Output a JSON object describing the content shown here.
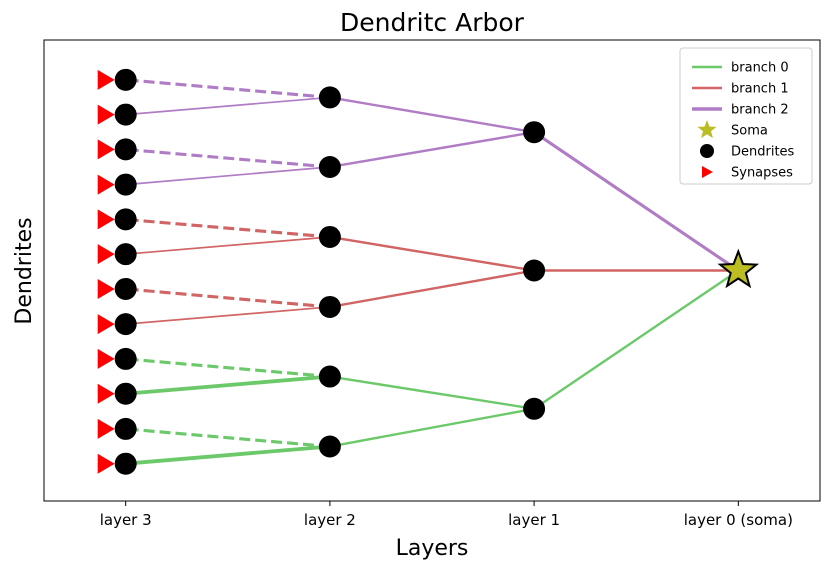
{
  "chart_data": {
    "type": "diagram",
    "title": "Dendritc Arbor",
    "xlabel": "Layers",
    "ylabel": "Dendrites",
    "x_ticks": [
      "layer 3",
      "layer 2",
      "layer 1",
      "layer 0 (soma)"
    ],
    "layer_positions": [
      0,
      1,
      2,
      3
    ],
    "xlim": [
      -0.4,
      3.4
    ],
    "ylim": [
      -0.05,
      1.05
    ],
    "soma": {
      "layer": 3,
      "y": 0.5
    },
    "legend": {
      "placement": "top-right",
      "entries": [
        {
          "label": "branch 0",
          "kind": "line",
          "color": "#6cc96a"
        },
        {
          "label": "branch 1",
          "kind": "line",
          "color": "#d16464"
        },
        {
          "label": "branch 2",
          "kind": "line",
          "color": "#b07cc6"
        },
        {
          "label": "Soma",
          "kind": "star",
          "color": "#bcbd22"
        },
        {
          "label": "Dendrites",
          "kind": "dot",
          "color": "#000000"
        },
        {
          "label": "Synapses",
          "kind": "triangle",
          "color": "#ff0000"
        }
      ]
    },
    "nodes": [
      {
        "id": "L1-a",
        "layer": 2,
        "y": 0.83
      },
      {
        "id": "L1-b",
        "layer": 2,
        "y": 0.5
      },
      {
        "id": "L1-c",
        "layer": 2,
        "y": 0.17
      },
      {
        "id": "L2-a",
        "layer": 1,
        "y": 0.913
      },
      {
        "id": "L2-b",
        "layer": 1,
        "y": 0.747
      },
      {
        "id": "L2-c",
        "layer": 1,
        "y": 0.58
      },
      {
        "id": "L2-d",
        "layer": 1,
        "y": 0.413
      },
      {
        "id": "L2-e",
        "layer": 1,
        "y": 0.247
      },
      {
        "id": "L2-f",
        "layer": 1,
        "y": 0.08
      },
      {
        "id": "L3-1",
        "layer": 0,
        "y": 0.955
      },
      {
        "id": "L3-2",
        "layer": 0,
        "y": 0.872
      },
      {
        "id": "L3-3",
        "layer": 0,
        "y": 0.789
      },
      {
        "id": "L3-4",
        "layer": 0,
        "y": 0.705
      },
      {
        "id": "L3-5",
        "layer": 0,
        "y": 0.622
      },
      {
        "id": "L3-6",
        "layer": 0,
        "y": 0.539
      },
      {
        "id": "L3-7",
        "layer": 0,
        "y": 0.456
      },
      {
        "id": "L3-8",
        "layer": 0,
        "y": 0.372
      },
      {
        "id": "L3-9",
        "layer": 0,
        "y": 0.289
      },
      {
        "id": "L3-10",
        "layer": 0,
        "y": 0.206
      },
      {
        "id": "L3-11",
        "layer": 0,
        "y": 0.122
      },
      {
        "id": "L3-12",
        "layer": 0,
        "y": 0.039
      }
    ],
    "edges": [
      {
        "from": "soma",
        "to": "L1-a",
        "branch": 2,
        "weight": 3,
        "style": "solid"
      },
      {
        "from": "soma",
        "to": "L1-b",
        "branch": 1,
        "weight": 2,
        "style": "solid"
      },
      {
        "from": "soma",
        "to": "L1-c",
        "branch": 0,
        "weight": 2,
        "style": "solid"
      },
      {
        "from": "L1-a",
        "to": "L2-a",
        "branch": 2,
        "weight": 2,
        "style": "solid"
      },
      {
        "from": "L1-a",
        "to": "L2-b",
        "branch": 2,
        "weight": 2,
        "style": "solid"
      },
      {
        "from": "L1-b",
        "to": "L2-c",
        "branch": 1,
        "weight": 2,
        "style": "solid"
      },
      {
        "from": "L1-b",
        "to": "L2-d",
        "branch": 1,
        "weight": 2,
        "style": "solid"
      },
      {
        "from": "L1-c",
        "to": "L2-e",
        "branch": 0,
        "weight": 2,
        "style": "solid"
      },
      {
        "from": "L1-c",
        "to": "L2-f",
        "branch": 0,
        "weight": 2,
        "style": "solid"
      },
      {
        "from": "L2-a",
        "to": "L3-1",
        "branch": 2,
        "weight": 3,
        "style": "dashed"
      },
      {
        "from": "L2-a",
        "to": "L3-2",
        "branch": 2,
        "weight": 1,
        "style": "solid"
      },
      {
        "from": "L2-b",
        "to": "L3-3",
        "branch": 2,
        "weight": 3,
        "style": "dashed"
      },
      {
        "from": "L2-b",
        "to": "L3-4",
        "branch": 2,
        "weight": 1,
        "style": "solid"
      },
      {
        "from": "L2-c",
        "to": "L3-5",
        "branch": 1,
        "weight": 3,
        "style": "dashed"
      },
      {
        "from": "L2-c",
        "to": "L3-6",
        "branch": 1,
        "weight": 1,
        "style": "solid"
      },
      {
        "from": "L2-d",
        "to": "L3-7",
        "branch": 1,
        "weight": 3,
        "style": "dashed"
      },
      {
        "from": "L2-d",
        "to": "L3-8",
        "branch": 1,
        "weight": 1,
        "style": "solid"
      },
      {
        "from": "L2-e",
        "to": "L3-9",
        "branch": 0,
        "weight": 3,
        "style": "dashed"
      },
      {
        "from": "L2-e",
        "to": "L3-10",
        "branch": 0,
        "weight": 4,
        "style": "solid"
      },
      {
        "from": "L2-f",
        "to": "L3-11",
        "branch": 0,
        "weight": 3,
        "style": "dashed"
      },
      {
        "from": "L2-f",
        "to": "L3-12",
        "branch": 0,
        "weight": 4,
        "style": "solid"
      }
    ],
    "synapses_at_layer": 0
  }
}
